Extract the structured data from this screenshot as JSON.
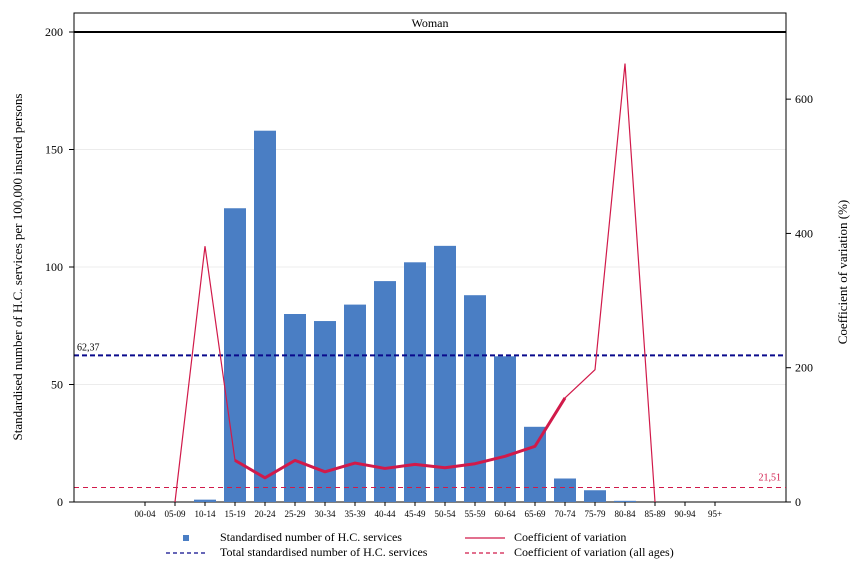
{
  "chart_data": {
    "type": "bar",
    "panel_title": "Woman",
    "categories": [
      "00-04",
      "05-09",
      "10-14",
      "15-19",
      "20-24",
      "25-29",
      "30-34",
      "35-39",
      "40-44",
      "45-49",
      "50-54",
      "55-59",
      "60-64",
      "65-69",
      "70-74",
      "75-79",
      "80-84",
      "85-89",
      "90-94",
      "95+"
    ],
    "series": [
      {
        "name": "Standardised number of H.C. services",
        "axis": "left",
        "type": "bar",
        "values": [
          0,
          0,
          1,
          125,
          158,
          80,
          77,
          84,
          94,
          102,
          109,
          88,
          62,
          32,
          10,
          5,
          0.5,
          0,
          0,
          0
        ]
      },
      {
        "name": "Coefficient of variation",
        "axis": "right",
        "type": "line",
        "values": [
          null,
          0,
          381,
          62,
          36,
          62,
          45,
          58,
          50,
          56,
          51,
          57,
          68,
          83,
          155,
          197,
          653,
          0,
          null,
          null
        ]
      }
    ],
    "reference_lines": [
      {
        "name": "Total standardised number of H.C. services",
        "axis": "left",
        "value": 62.37,
        "label": "62,37",
        "color": "#0a0a8c"
      },
      {
        "name": "Coefficient of variation (all ages)",
        "axis": "right",
        "value": 21.51,
        "label": "21,51",
        "color": "#d11a4a"
      }
    ],
    "ylabel": "Standardised number of H.C. services per 100,000 insured persons",
    "y2label": "Coefficient of variation (%)",
    "ylim": [
      0,
      200
    ],
    "y2lim": [
      0,
      700
    ],
    "yticks": [
      0,
      50,
      100,
      150,
      200
    ],
    "y2ticks": [
      0,
      200,
      400,
      600
    ],
    "grid": true,
    "legend_position": "bottom",
    "colors": {
      "bar": "#4a7ec4",
      "cv_line": "#d11a4a",
      "total_line": "#0a0a8c",
      "cv_all_line": "#d11a4a"
    }
  }
}
